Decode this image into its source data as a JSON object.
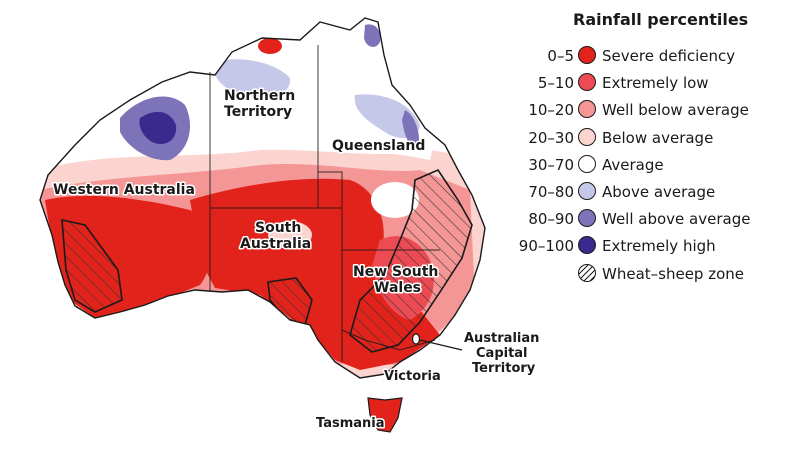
{
  "legend": {
    "title": "Rainfall percentiles",
    "items": [
      {
        "range": "0–5",
        "label": "Severe deficiency",
        "color": "#e1231b"
      },
      {
        "range": "5–10",
        "label": "Extremely low",
        "color": "#ec4b53"
      },
      {
        "range": "10–20",
        "label": "Well below average",
        "color": "#f39695"
      },
      {
        "range": "20–30",
        "label": "Below average",
        "color": "#fbd4d0"
      },
      {
        "range": "30–70",
        "label": "Average",
        "color": "#ffffff"
      },
      {
        "range": "70–80",
        "label": "Above average",
        "color": "#c6c8e9"
      },
      {
        "range": "80–90",
        "label": "Well above average",
        "color": "#7c73b9"
      },
      {
        "range": "90–100",
        "label": "Extremely high",
        "color": "#3b2a8e"
      },
      {
        "range": "",
        "label": "Wheat–sheep zone",
        "color": "hatched"
      }
    ]
  },
  "regions": {
    "western_australia": "Western Australia",
    "northern_territory_1": "Northern",
    "northern_territory_2": "Territory",
    "queensland": "Queensland",
    "south_australia_1": "South",
    "south_australia_2": "Australia",
    "nsw_1": "New South",
    "nsw_2": "Wales",
    "act_1": "Australian",
    "act_2": "Capital",
    "act_3": "Territory",
    "victoria": "Victoria",
    "tasmania": "Tasmania"
  }
}
